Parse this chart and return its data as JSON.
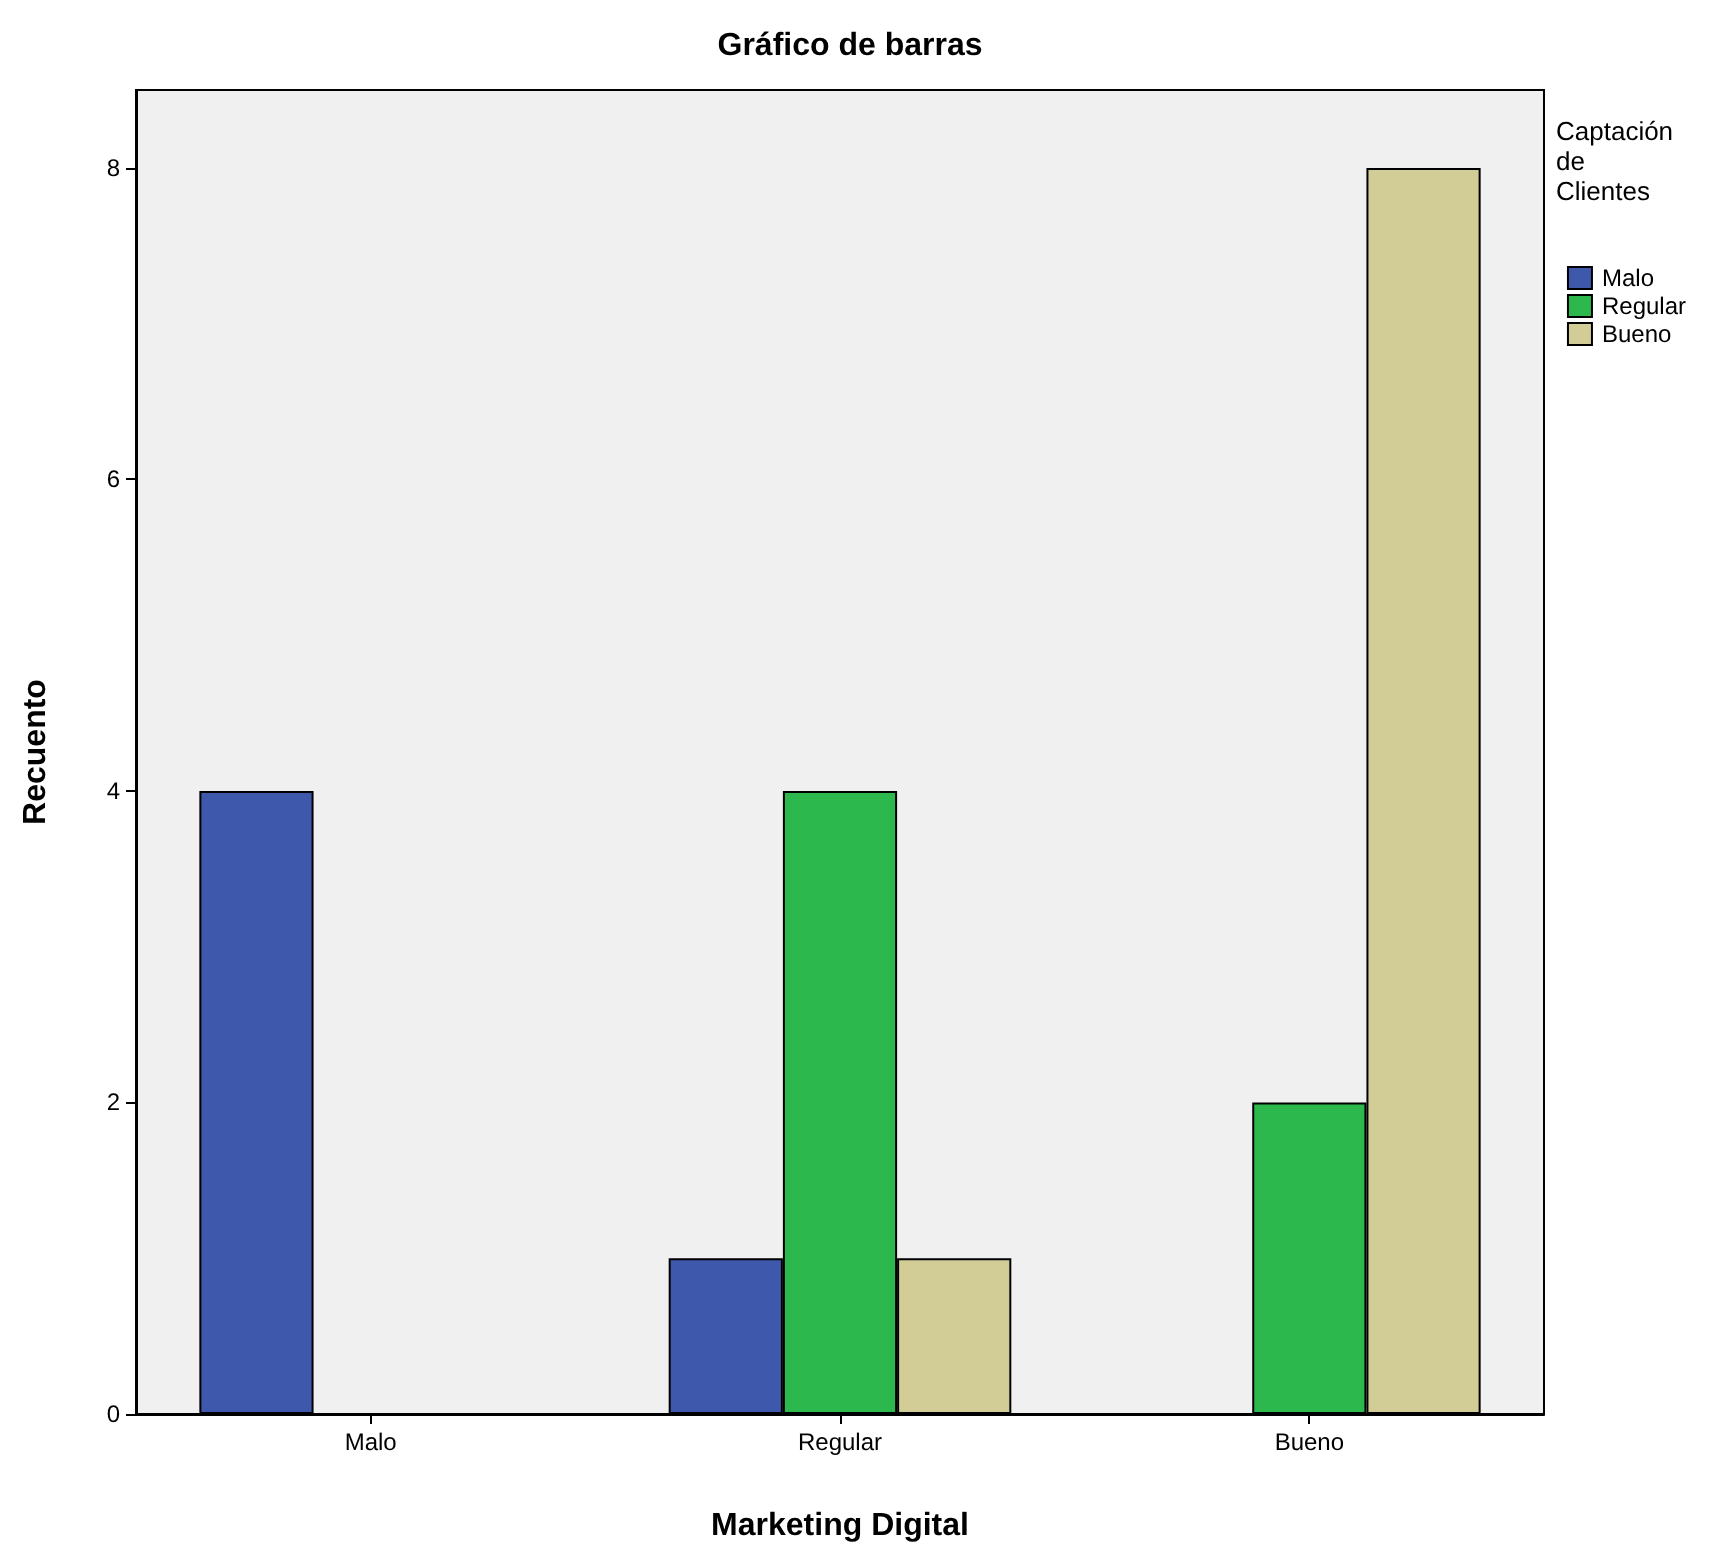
{
  "chart_data": {
    "type": "bar",
    "title": "Gráfico de barras",
    "xlabel": "Marketing Digital",
    "ylabel": "Recuento",
    "legend_title": "Captación de Clientes",
    "categories": [
      "Malo",
      "Regular",
      "Bueno"
    ],
    "series": [
      {
        "name": "Malo",
        "color": "#3e58ac",
        "values": [
          4,
          1,
          0
        ]
      },
      {
        "name": "Regular",
        "color": "#2db84d",
        "values": [
          0,
          4,
          2
        ]
      },
      {
        "name": "Bueno",
        "color": "#d2cc96",
        "values": [
          0,
          1,
          8
        ]
      }
    ],
    "ylim": [
      0,
      8.5
    ],
    "yticks": [
      0,
      2,
      4,
      6,
      8
    ],
    "grid": false,
    "legend": "top right"
  }
}
